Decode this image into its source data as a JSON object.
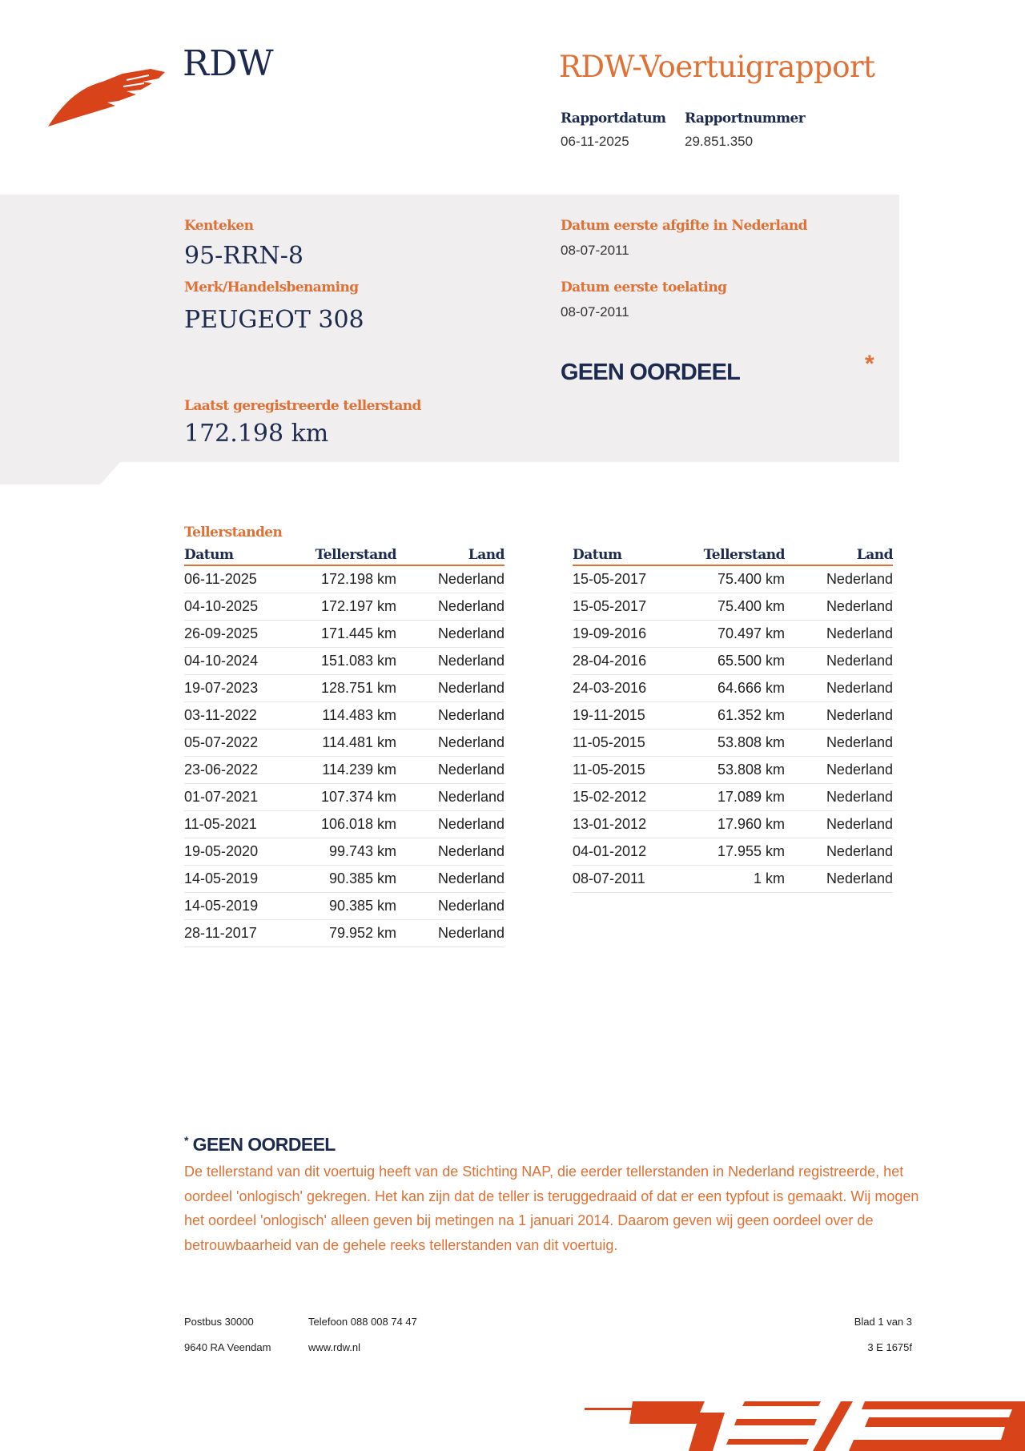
{
  "header": {
    "org": "RDW",
    "title": "RDW-Voertuigrapport",
    "rapportdatum_label": "Rapportdatum",
    "rapportdatum": "06-11-2025",
    "rapportnummer_label": "Rapportnummer",
    "rapportnummer": "29.851.350"
  },
  "vehicle": {
    "kenteken_label": "Kenteken",
    "kenteken": "95-RRN-8",
    "merk_label": "Merk/Handelsbenaming",
    "merk": "PEUGEOT 308",
    "tellerstand_label": "Laatst geregistreerde tellerstand",
    "tellerstand": "172.198 km",
    "afgifte_label": "Datum eerste afgifte in Nederland",
    "afgifte": "08-07-2011",
    "toelating_label": "Datum eerste toelating",
    "toelating": "08-07-2011",
    "oordeel": "GEEN OORDEEL",
    "asterisk": "*"
  },
  "tellerstanden": {
    "title": "Tellerstanden",
    "columns": [
      "Datum",
      "Tellerstand",
      "Land"
    ],
    "left": [
      [
        "06-11-2025",
        "172.198 km",
        "Nederland"
      ],
      [
        "04-10-2025",
        "172.197 km",
        "Nederland"
      ],
      [
        "26-09-2025",
        "171.445 km",
        "Nederland"
      ],
      [
        "04-10-2024",
        "151.083 km",
        "Nederland"
      ],
      [
        "19-07-2023",
        "128.751 km",
        "Nederland"
      ],
      [
        "03-11-2022",
        "114.483 km",
        "Nederland"
      ],
      [
        "05-07-2022",
        "114.481 km",
        "Nederland"
      ],
      [
        "23-06-2022",
        "114.239 km",
        "Nederland"
      ],
      [
        "01-07-2021",
        "107.374 km",
        "Nederland"
      ],
      [
        "11-05-2021",
        "106.018 km",
        "Nederland"
      ],
      [
        "19-05-2020",
        "99.743 km",
        "Nederland"
      ],
      [
        "14-05-2019",
        "90.385 km",
        "Nederland"
      ],
      [
        "14-05-2019",
        "90.385 km",
        "Nederland"
      ],
      [
        "28-11-2017",
        "79.952 km",
        "Nederland"
      ]
    ],
    "right": [
      [
        "15-05-2017",
        "75.400 km",
        "Nederland"
      ],
      [
        "15-05-2017",
        "75.400 km",
        "Nederland"
      ],
      [
        "19-09-2016",
        "70.497 km",
        "Nederland"
      ],
      [
        "28-04-2016",
        "65.500 km",
        "Nederland"
      ],
      [
        "24-03-2016",
        "64.666 km",
        "Nederland"
      ],
      [
        "19-11-2015",
        "61.352 km",
        "Nederland"
      ],
      [
        "11-05-2015",
        "53.808 km",
        "Nederland"
      ],
      [
        "11-05-2015",
        "53.808 km",
        "Nederland"
      ],
      [
        "15-02-2012",
        "17.089 km",
        "Nederland"
      ],
      [
        "13-01-2012",
        "17.960 km",
        "Nederland"
      ],
      [
        "04-01-2012",
        "17.955 km",
        "Nederland"
      ],
      [
        "08-07-2011",
        "1 km",
        "Nederland"
      ]
    ]
  },
  "footnote": {
    "star": "*",
    "title": "GEEN OORDEEL",
    "text": "De tellerstand van dit voertuig heeft van de Stichting NAP, die eerder tellerstanden in Nederland registreerde, het oordeel 'onlogisch' gekregen. Het kan zijn dat de teller is teruggedraaid of dat er een typfout is gemaakt. Wij mogen het oordeel 'onlogisch' alleen geven bij metingen na 1 januari 2014. Daarom geven wij geen oordeel over de betrouwbaarheid van de gehele reeks tellerstanden van dit voertuig."
  },
  "footer": {
    "postbus": "Postbus 30000",
    "plaats": "9640 RA Veendam",
    "telefoon": "Telefoon 088 008 74 47",
    "website": "www.rdw.nl",
    "blad": "Blad 1 van 3",
    "code": "3 E 1675f"
  },
  "colors": {
    "accent": "#e07034",
    "logo": "#d8431a",
    "navy": "#1b2a4e",
    "panel": "#f0eeef"
  }
}
